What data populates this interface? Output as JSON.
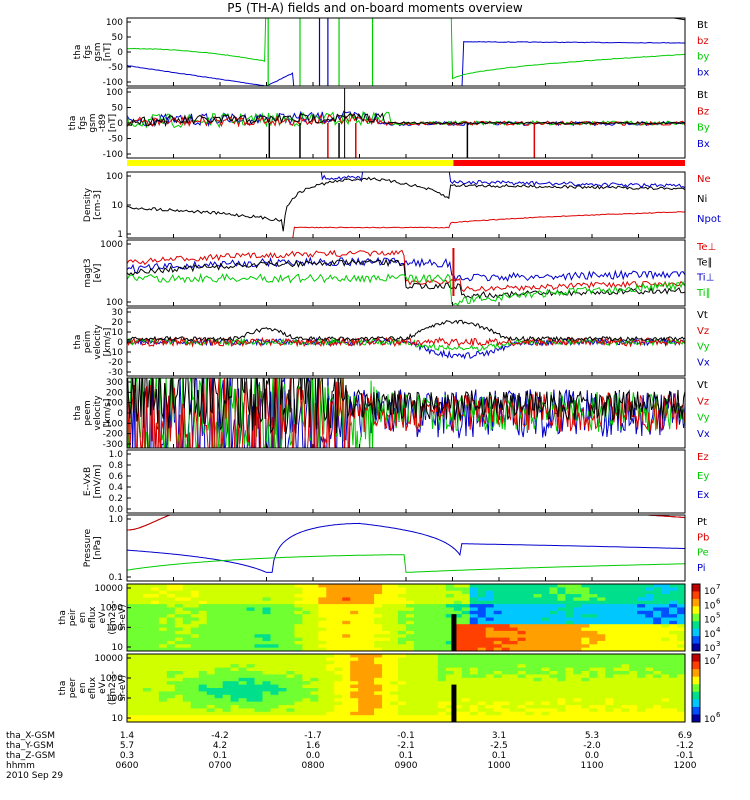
{
  "title": "P5 (TH-A) fields and on-board moments overview",
  "date_label": "2010 Sep 29",
  "ephemeris": {
    "labels": [
      "tha_X-GSM",
      "tha_Y-GSM",
      "tha_Z-GSM",
      "hhmm"
    ],
    "ticks": [
      [
        "1.4",
        "-4.2",
        "-1.7",
        "-0.1",
        "3.1",
        "5.3",
        "6.9"
      ],
      [
        "5.7",
        "4.2",
        "1.6",
        "-2.1",
        "-2.5",
        "-2.0",
        "-1.2"
      ],
      [
        "0.3",
        "0.1",
        "0.0",
        "0.1",
        "0.1",
        "0.0",
        "-0.1"
      ],
      [
        "0600",
        "0700",
        "0800",
        "0900",
        "1000",
        "1100",
        "1200"
      ]
    ],
    "xgsm_label_note": "X-GSM row first tick shows 1.4, second -4.2"
  },
  "colors": {
    "black": "#000000",
    "red": "#dd0000",
    "green": "#00cc00",
    "blue": "#0000cc",
    "yellow": "#ffff00",
    "bar_red": "#ff0000"
  },
  "chart_data": [
    {
      "type": "line",
      "panel": "fgs",
      "ylabel": [
        "tha",
        "fgs",
        "gsm",
        "[nT]"
      ],
      "ytick_labels": [
        "100",
        "50",
        "0",
        "-50",
        "-100"
      ],
      "ylim": [
        -100,
        100
      ],
      "series": [
        {
          "name": "Bt",
          "color": "#000000"
        },
        {
          "name": "bz",
          "color": "#dd0000"
        },
        {
          "name": "by",
          "color": "#00cc00"
        },
        {
          "name": "bx",
          "color": "#0000cc"
        }
      ]
    },
    {
      "type": "line",
      "panel": "fgs-t89",
      "ylabel": [
        "tha",
        "fgs",
        "gsm",
        "-t89",
        "[nT]"
      ],
      "ytick_labels": [
        "100",
        "50",
        "0",
        "-50",
        "-100"
      ],
      "ylim": [
        -120,
        120
      ],
      "series": [
        {
          "name": "Bt",
          "color": "#000000"
        },
        {
          "name": "Bz",
          "color": "#dd0000"
        },
        {
          "name": "By",
          "color": "#00cc00"
        },
        {
          "name": "Bx",
          "color": "#0000cc"
        }
      ]
    },
    {
      "type": "area",
      "panel": "mode-bar",
      "segments": [
        {
          "from": "0600",
          "to": "0955",
          "color": "#ffff00"
        },
        {
          "from": "0955",
          "to": "1200",
          "color": "#ff0000"
        }
      ]
    },
    {
      "type": "line",
      "panel": "density",
      "ylabel": [
        "Density",
        "[cm-3]"
      ],
      "ytick_labels": [
        "100",
        "10",
        "1"
      ],
      "scale": "log",
      "series": [
        {
          "name": "Ne",
          "color": "#dd0000"
        },
        {
          "name": "Ni",
          "color": "#000000"
        },
        {
          "name": "Npot",
          "color": "#0000cc"
        }
      ]
    },
    {
      "type": "line",
      "panel": "temperature",
      "ylabel": [
        "magt3",
        "[eV]"
      ],
      "ytick_labels": [
        "1000",
        "100"
      ],
      "scale": "log",
      "series": [
        {
          "name": "Te⊥",
          "color": "#dd0000"
        },
        {
          "name": "Te∥",
          "color": "#000000"
        },
        {
          "name": "Ti⊥",
          "color": "#0000cc"
        },
        {
          "name": "Ti∥",
          "color": "#00cc00"
        }
      ]
    },
    {
      "type": "line",
      "panel": "peim-velocity",
      "ylabel": [
        "tha",
        "peim",
        "velocity",
        "[km/s]"
      ],
      "ytick_labels": [
        "30",
        "20",
        "10",
        "0",
        "-10",
        "-20",
        "-30"
      ],
      "ylim": [
        -30,
        30
      ],
      "series": [
        {
          "name": "Vt",
          "color": "#000000"
        },
        {
          "name": "Vz",
          "color": "#dd0000"
        },
        {
          "name": "Vy",
          "color": "#00cc00"
        },
        {
          "name": "Vx",
          "color": "#0000cc"
        }
      ]
    },
    {
      "type": "line",
      "panel": "peem-velocity",
      "ylabel": [
        "tha",
        "peem",
        "velocity",
        "[km/s]"
      ],
      "ytick_labels": [
        "300",
        "200",
        "100",
        "0",
        "-100",
        "-200",
        "-300"
      ],
      "ylim": [
        -300,
        300
      ],
      "series": [
        {
          "name": "Vt",
          "color": "#000000"
        },
        {
          "name": "Vz",
          "color": "#dd0000"
        },
        {
          "name": "Vy",
          "color": "#00cc00"
        },
        {
          "name": "Vx",
          "color": "#0000cc"
        }
      ]
    },
    {
      "type": "line",
      "panel": "efield",
      "ylabel": [
        "E--VxB",
        "[mV/m]"
      ],
      "ytick_labels": [
        "1.0",
        "0.8",
        "0.6",
        "0.4",
        "0.2",
        "0.0"
      ],
      "ylim": [
        0,
        1
      ],
      "series": [
        {
          "name": "Ez",
          "color": "#dd0000"
        },
        {
          "name": "Ey",
          "color": "#00cc00"
        },
        {
          "name": "Ex",
          "color": "#0000cc"
        }
      ]
    },
    {
      "type": "line",
      "panel": "pressure",
      "ylabel": [
        "Pressure",
        "[nPa]"
      ],
      "ytick_labels": [
        "1.0",
        "0.1"
      ],
      "scale": "log",
      "series": [
        {
          "name": "Pt",
          "color": "#000000"
        },
        {
          "name": "Pb",
          "color": "#dd0000"
        },
        {
          "name": "Pe",
          "color": "#00cc00"
        },
        {
          "name": "Pi",
          "color": "#0000cc"
        }
      ]
    },
    {
      "type": "heatmap",
      "panel": "peir",
      "ylabel": [
        "tha",
        "peir",
        "en",
        "eflux",
        "eV",
        "(cm2-s-",
        "sr-eV)"
      ],
      "ytick_labels": [
        "10000",
        "1000",
        "100",
        "10"
      ],
      "colorbar_labels": [
        "10",
        "10",
        "10",
        "10",
        "10"
      ],
      "colorbar_exps": [
        "7",
        "6",
        "5",
        "4",
        "3"
      ]
    },
    {
      "type": "heatmap",
      "panel": "peer",
      "ylabel": [
        "tha",
        "peer",
        "en",
        "eflux",
        "eV",
        "(cm2-s-",
        "sr-eV)"
      ],
      "ytick_labels": [
        "10000",
        "1000",
        "100",
        "10"
      ],
      "colorbar_labels": [
        "10",
        "10"
      ],
      "colorbar_exps": [
        "7",
        "6"
      ]
    }
  ]
}
